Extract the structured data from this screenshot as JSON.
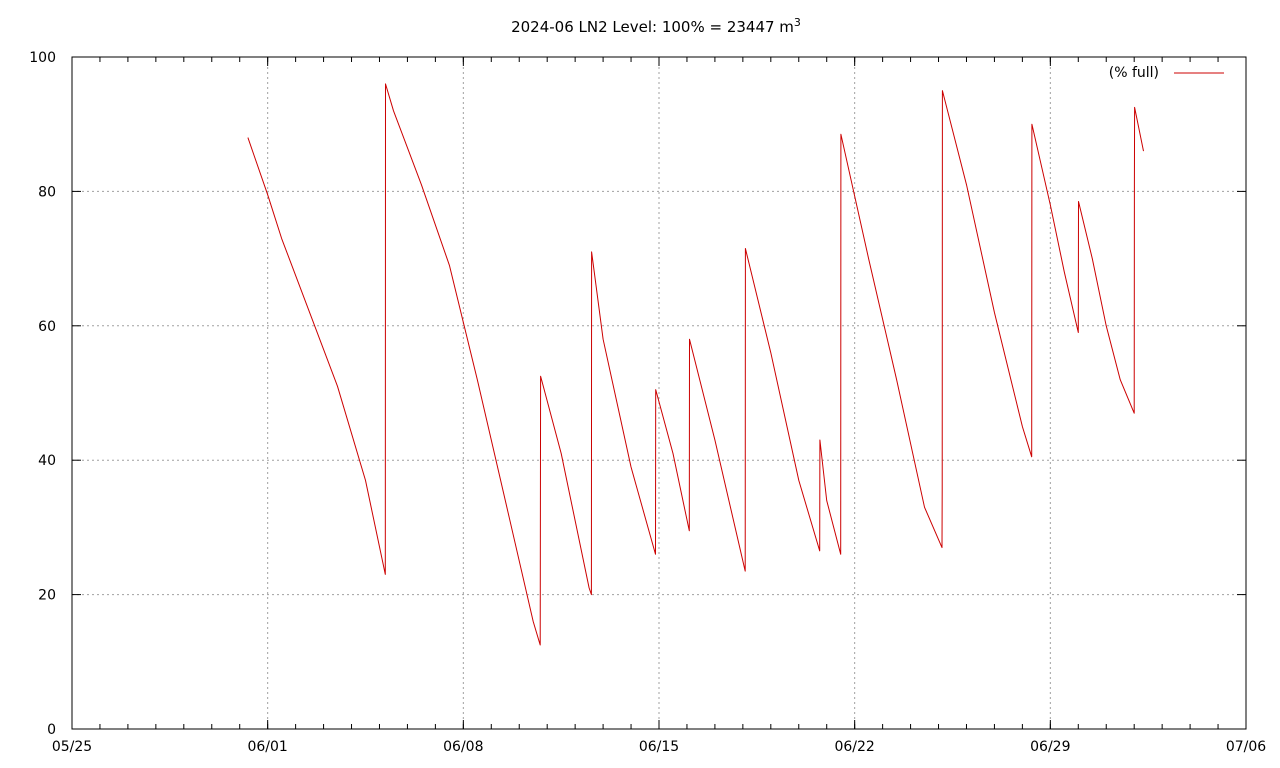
{
  "chart_data": {
    "type": "line",
    "title": {
      "main": "2024-06 LN2 Level: 100% = 23447 m",
      "superscript": "3"
    },
    "xlabel": "",
    "ylabel": "",
    "x_axis": {
      "type": "date",
      "range": [
        "05/25",
        "07/06"
      ],
      "tick_labels": [
        "05/25",
        "06/01",
        "06/08",
        "06/15",
        "06/22",
        "06/29",
        "07/06"
      ],
      "minor_ticks_per_day": true
    },
    "y_axis": {
      "range": [
        0,
        100
      ],
      "tick_labels": [
        "0",
        "20",
        "40",
        "60",
        "80",
        "100"
      ]
    },
    "grid": true,
    "legend": {
      "position": "top-right"
    },
    "series": [
      {
        "name": "(% full)",
        "color": "#cc0000",
        "points": [
          [
            "05/31 07:00",
            88.0
          ],
          [
            "06/01 00:00",
            79.5
          ],
          [
            "06/01 12:00",
            73.0
          ],
          [
            "06/02 12:00",
            62.0
          ],
          [
            "06/03 12:00",
            51.0
          ],
          [
            "06/04 12:00",
            37.0
          ],
          [
            "06/05 05:00",
            23.0
          ],
          [
            "06/05 05:10",
            96.0
          ],
          [
            "06/05 12:00",
            92.0
          ],
          [
            "06/06 12:00",
            81.0
          ],
          [
            "06/07 12:00",
            69.0
          ],
          [
            "06/08 12:00",
            52.0
          ],
          [
            "06/09 12:00",
            34.0
          ],
          [
            "06/10 12:00",
            16.0
          ],
          [
            "06/10 18:00",
            12.5
          ],
          [
            "06/10 18:10",
            33.0
          ],
          [
            "06/10 18:20",
            52.5
          ],
          [
            "06/11 12:00",
            41.0
          ],
          [
            "06/12 12:00",
            21.0
          ],
          [
            "06/12 14:00",
            20.0
          ],
          [
            "06/12 14:10",
            71.0
          ],
          [
            "06/13 00:00",
            58.0
          ],
          [
            "06/14 00:00",
            39.0
          ],
          [
            "06/14 21:00",
            26.0
          ],
          [
            "06/14 21:10",
            50.5
          ],
          [
            "06/15 12:00",
            41.0
          ],
          [
            "06/16 02:00",
            29.5
          ],
          [
            "06/16 02:10",
            58.0
          ],
          [
            "06/17 00:00",
            43.0
          ],
          [
            "06/18 02:00",
            23.5
          ],
          [
            "06/18 02:10",
            71.5
          ],
          [
            "06/19 00:00",
            56.0
          ],
          [
            "06/20 00:00",
            37.0
          ],
          [
            "06/20 18:00",
            26.5
          ],
          [
            "06/20 18:10",
            43.0
          ],
          [
            "06/21 00:00",
            34.0
          ],
          [
            "06/21 12:00",
            26.0
          ],
          [
            "06/21 12:10",
            88.5
          ],
          [
            "06/22 12:00",
            70.0
          ],
          [
            "06/23 12:00",
            52.0
          ],
          [
            "06/24 12:00",
            33.0
          ],
          [
            "06/25 03:00",
            27.0
          ],
          [
            "06/25 03:10",
            35.5
          ],
          [
            "06/25 03:20",
            95.0
          ],
          [
            "06/26 00:00",
            81.0
          ],
          [
            "06/27 00:00",
            62.0
          ],
          [
            "06/28 00:00",
            45.0
          ],
          [
            "06/28 08:00",
            40.5
          ],
          [
            "06/28 08:10",
            90.0
          ],
          [
            "06/29 00:00",
            78.0
          ],
          [
            "06/29 12:00",
            68.0
          ],
          [
            "06/30 00:00",
            59.0
          ],
          [
            "06/30 00:10",
            78.5
          ],
          [
            "06/30 12:00",
            70.0
          ],
          [
            "07/01 00:00",
            60.0
          ],
          [
            "07/01 12:00",
            52.0
          ],
          [
            "07/02 00:00",
            47.0
          ],
          [
            "07/02 00:10",
            81.0
          ],
          [
            "07/02 00:20",
            92.5
          ],
          [
            "07/02 08:00",
            86.0
          ]
        ]
      }
    ]
  }
}
